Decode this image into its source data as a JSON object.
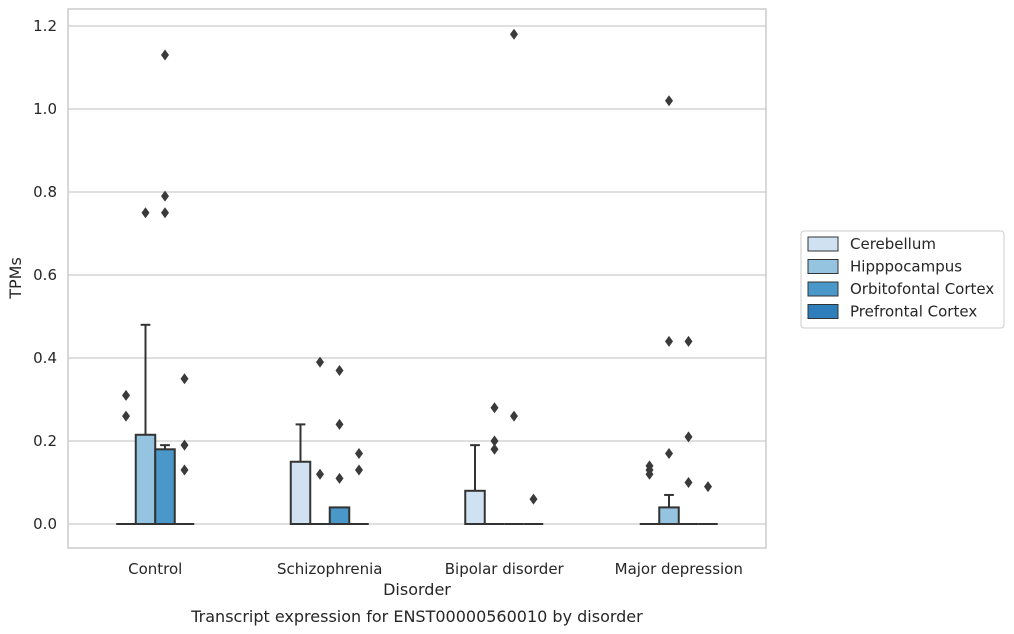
{
  "chart_data": {
    "type": "box",
    "xlabel": "Disorder",
    "ylabel": "TPMs",
    "caption": "Transcript expression for ENST00000560010 by disorder",
    "ylim": [
      -0.06,
      1.24
    ],
    "yticks": [
      "0.0",
      "0.2",
      "0.4",
      "0.6",
      "0.8",
      "1.0",
      "1.2"
    ],
    "grid": "horizontal",
    "legend_position": "right",
    "categories": [
      "Control",
      "Schizophrenia",
      "Bipolar disorder",
      "Major depression"
    ],
    "series": [
      {
        "name": "Cerebellum",
        "color": "#d0e1f2",
        "boxes": [
          {
            "q1": 0,
            "median": 0,
            "q3": 0,
            "whisker_low": 0,
            "whisker_high": 0,
            "outliers": [
              0.26,
              0.31
            ]
          },
          {
            "q1": 0,
            "median": 0,
            "q3": 0.15,
            "whisker_low": 0,
            "whisker_high": 0.24,
            "outliers": []
          },
          {
            "q1": 0,
            "median": 0,
            "q3": 0.08,
            "whisker_low": 0,
            "whisker_high": 0.19,
            "outliers": []
          },
          {
            "q1": 0,
            "median": 0,
            "q3": 0,
            "whisker_low": 0,
            "whisker_high": 0,
            "outliers": [
              0.12,
              0.13,
              0.14
            ]
          }
        ]
      },
      {
        "name": "Hipppocampus",
        "color": "#94c4df",
        "boxes": [
          {
            "q1": 0,
            "median": 0,
            "q3": 0.215,
            "whisker_low": 0,
            "whisker_high": 0.48,
            "outliers": [
              0.75
            ]
          },
          {
            "q1": 0,
            "median": 0,
            "q3": 0,
            "whisker_low": 0,
            "whisker_high": 0,
            "outliers": [
              0.12,
              0.39
            ]
          },
          {
            "q1": 0,
            "median": 0,
            "q3": 0,
            "whisker_low": 0,
            "whisker_high": 0,
            "outliers": [
              0.18,
              0.2,
              0.28
            ]
          },
          {
            "q1": 0,
            "median": 0,
            "q3": 0.04,
            "whisker_low": 0,
            "whisker_high": 0.07,
            "outliers": [
              0.17,
              0.44,
              1.02
            ]
          }
        ]
      },
      {
        "name": "Orbitofontal Cortex",
        "color": "#4a98c9",
        "boxes": [
          {
            "q1": 0,
            "median": 0,
            "q3": 0.18,
            "whisker_low": 0,
            "whisker_high": 0.19,
            "outliers": [
              0.75,
              0.79,
              1.13
            ]
          },
          {
            "q1": 0,
            "median": 0,
            "q3": 0.04,
            "whisker_low": 0,
            "whisker_high": 0.04,
            "outliers": [
              0.11,
              0.24,
              0.37
            ]
          },
          {
            "q1": 0,
            "median": 0,
            "q3": 0,
            "whisker_low": 0,
            "whisker_high": 0,
            "outliers": [
              0.26,
              1.18
            ]
          },
          {
            "q1": 0,
            "median": 0,
            "q3": 0,
            "whisker_low": 0,
            "whisker_high": 0,
            "outliers": [
              0.1,
              0.21,
              0.44
            ]
          }
        ]
      },
      {
        "name": "Prefrontal Cortex",
        "color": "#2e7ebc",
        "boxes": [
          {
            "q1": 0,
            "median": 0,
            "q3": 0,
            "whisker_low": 0,
            "whisker_high": 0,
            "outliers": [
              0.13,
              0.19,
              0.35
            ]
          },
          {
            "q1": 0,
            "median": 0,
            "q3": 0,
            "whisker_low": 0,
            "whisker_high": 0,
            "outliers": [
              0.13,
              0.17
            ]
          },
          {
            "q1": 0,
            "median": 0,
            "q3": 0,
            "whisker_low": 0,
            "whisker_high": 0,
            "outliers": [
              0.06
            ]
          },
          {
            "q1": 0,
            "median": 0,
            "q3": 0,
            "whisker_low": 0,
            "whisker_high": 0,
            "outliers": [
              0.09
            ]
          }
        ]
      }
    ]
  }
}
